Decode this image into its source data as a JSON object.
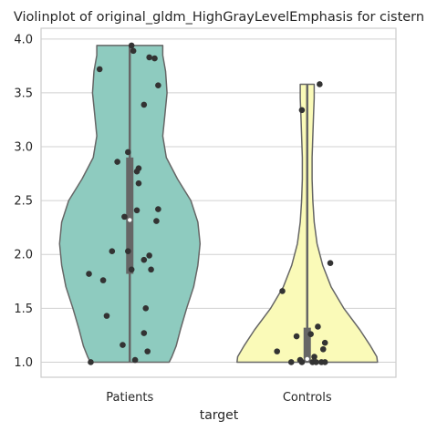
{
  "chart_data": {
    "type": "violin",
    "title": "Violinplot of original_gldm_HighGrayLevelEmphasis for cistern",
    "xlabel": "target",
    "ylabel": "",
    "ylim": [
      0.86,
      4.1
    ],
    "yticks": [
      1.0,
      1.5,
      2.0,
      2.5,
      3.0,
      3.5,
      4.0
    ],
    "ytick_labels": [
      "1.0",
      "1.5",
      "2.0",
      "2.5",
      "3.0",
      "3.5",
      "4.0"
    ],
    "grid": true,
    "categories": [
      "Patients",
      "Controls"
    ],
    "colors": [
      "#8ecbbf",
      "#fafab8"
    ],
    "violins": [
      {
        "category": "Patients",
        "min": 1.0,
        "max": 3.94,
        "q1": 1.82,
        "median": 2.32,
        "q3": 2.9,
        "density_profile": [
          [
            1.0,
            0.56
          ],
          [
            1.05,
            0.6
          ],
          [
            1.15,
            0.66
          ],
          [
            1.3,
            0.72
          ],
          [
            1.5,
            0.81
          ],
          [
            1.7,
            0.91
          ],
          [
            1.9,
            0.97
          ],
          [
            2.1,
            1.0
          ],
          [
            2.3,
            0.97
          ],
          [
            2.5,
            0.87
          ],
          [
            2.7,
            0.68
          ],
          [
            2.9,
            0.52
          ],
          [
            3.1,
            0.47
          ],
          [
            3.3,
            0.5
          ],
          [
            3.5,
            0.53
          ],
          [
            3.7,
            0.51
          ],
          [
            3.85,
            0.47
          ],
          [
            3.94,
            0.47
          ]
        ],
        "points": [
          [
            0.01,
            3.94
          ],
          [
            0.02,
            3.89
          ],
          [
            -0.17,
            3.72
          ],
          [
            0.11,
            3.83
          ],
          [
            0.14,
            3.82
          ],
          [
            0.16,
            3.57
          ],
          [
            0.08,
            3.39
          ],
          [
            -0.01,
            2.95
          ],
          [
            -0.07,
            2.86
          ],
          [
            0.05,
            2.8
          ],
          [
            0.04,
            2.77
          ],
          [
            0.05,
            2.66
          ],
          [
            -0.03,
            2.35
          ],
          [
            0.04,
            2.41
          ],
          [
            0.16,
            2.42
          ],
          [
            0.15,
            2.31
          ],
          [
            -0.1,
            2.03
          ],
          [
            -0.01,
            2.03
          ],
          [
            0.11,
            1.99
          ],
          [
            0.08,
            1.95
          ],
          [
            0.12,
            1.86
          ],
          [
            0.01,
            1.86
          ],
          [
            -0.23,
            1.82
          ],
          [
            -0.15,
            1.76
          ],
          [
            0.09,
            1.5
          ],
          [
            -0.13,
            1.43
          ],
          [
            0.08,
            1.27
          ],
          [
            -0.04,
            1.16
          ],
          [
            0.1,
            1.1
          ],
          [
            0.03,
            1.02
          ],
          [
            -0.22,
            1.0
          ]
        ]
      },
      {
        "category": "Controls",
        "min": 1.0,
        "max": 3.58,
        "q1": 1.0,
        "median": 1.03,
        "q3": 1.32,
        "density_profile": [
          [
            1.0,
            1.0
          ],
          [
            1.05,
            0.99
          ],
          [
            1.15,
            0.9
          ],
          [
            1.3,
            0.75
          ],
          [
            1.5,
            0.52
          ],
          [
            1.7,
            0.34
          ],
          [
            1.9,
            0.22
          ],
          [
            2.1,
            0.14
          ],
          [
            2.3,
            0.1
          ],
          [
            2.5,
            0.08
          ],
          [
            2.7,
            0.07
          ],
          [
            2.9,
            0.07
          ],
          [
            3.1,
            0.08
          ],
          [
            3.3,
            0.09
          ],
          [
            3.45,
            0.1
          ],
          [
            3.58,
            0.1
          ]
        ],
        "points": [
          [
            0.07,
            3.58
          ],
          [
            -0.03,
            3.34
          ],
          [
            0.13,
            1.92
          ],
          [
            -0.14,
            1.66
          ],
          [
            0.06,
            1.33
          ],
          [
            0.02,
            1.26
          ],
          [
            -0.06,
            1.24
          ],
          [
            0.1,
            1.18
          ],
          [
            -0.17,
            1.1
          ],
          [
            0.09,
            1.12
          ],
          [
            0.04,
            1.05
          ],
          [
            -0.09,
            1.0
          ],
          [
            -0.03,
            1.0
          ],
          [
            0.03,
            1.0
          ],
          [
            0.08,
            1.0
          ],
          [
            0.1,
            1.0
          ],
          [
            -0.04,
            1.02
          ],
          [
            0.05,
            1.0
          ]
        ]
      }
    ]
  }
}
